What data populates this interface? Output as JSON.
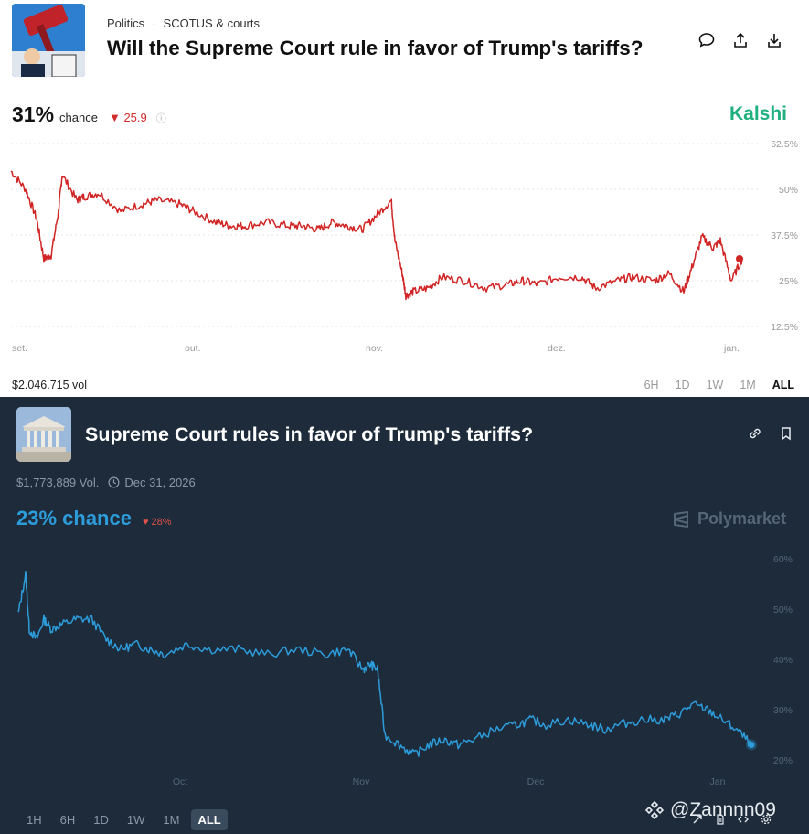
{
  "kalshi": {
    "breadcrumb": {
      "category": "Politics",
      "separator": "·",
      "subcategory": "SCOTUS & courts"
    },
    "title": "Will the Supreme Court rule in favor of Trump's tariffs?",
    "icons": [
      "comment-icon",
      "share-icon",
      "download-icon"
    ],
    "odds": {
      "percent": "31%",
      "label": "chance",
      "delta": "▼ 25.9",
      "info": "ⓘ"
    },
    "brand": "Kalshi",
    "volume": "$2.046.715 vol",
    "ranges": [
      "6H",
      "1D",
      "1W",
      "1M",
      "ALL"
    ],
    "active_range": "ALL",
    "colors": {
      "line": "#d12424",
      "brand": "#1fb07e",
      "delta": "#d32b2b"
    }
  },
  "polymarket": {
    "title": "Supreme Court rules in favor of Trump's tariffs?",
    "icons": [
      "link-icon",
      "bookmark-icon"
    ],
    "volume": "$1,773,889 Vol.",
    "end_date": "Dec 31, 2026",
    "odds": {
      "chance": "23% chance",
      "delta": "♥ 28%"
    },
    "brand": "Polymarket",
    "ranges": [
      "1H",
      "6H",
      "1D",
      "1W",
      "1M",
      "ALL"
    ],
    "active_range": "ALL",
    "watermark": "@Zannnn09",
    "colors": {
      "line": "#2d9cdb",
      "background": "#1d2b3a",
      "delta": "#e0514a"
    }
  },
  "chart_data": [
    {
      "type": "line",
      "source": "Kalshi",
      "x_ticks": [
        "set.",
        "out.",
        "nov.",
        "dez.",
        "jan."
      ],
      "y_ticks": [
        "62.5%",
        "50%",
        "37.5%",
        "25%",
        "12.5%"
      ],
      "ylim": [
        0.125,
        0.625
      ],
      "grid": true,
      "series": [
        {
          "x": [
            0,
            0.02,
            0.035,
            0.045,
            0.055,
            0.065,
            0.07,
            0.09,
            0.1,
            0.12,
            0.15,
            0.18,
            0.2,
            0.23,
            0.25,
            0.28,
            0.3,
            0.32,
            0.35,
            0.38,
            0.4,
            0.42,
            0.44,
            0.46,
            0.48,
            0.5,
            0.52,
            0.525,
            0.535,
            0.54,
            0.55,
            0.57,
            0.59,
            0.62,
            0.65,
            0.68,
            0.7,
            0.72,
            0.75,
            0.78,
            0.8,
            0.83,
            0.85,
            0.88,
            0.9,
            0.92,
            0.93,
            0.945,
            0.96,
            0.97,
            0.985,
            1.0
          ],
          "y": [
            0.55,
            0.5,
            0.42,
            0.31,
            0.32,
            0.44,
            0.54,
            0.47,
            0.48,
            0.49,
            0.44,
            0.46,
            0.47,
            0.46,
            0.44,
            0.41,
            0.4,
            0.4,
            0.41,
            0.4,
            0.4,
            0.39,
            0.41,
            0.4,
            0.39,
            0.43,
            0.47,
            0.36,
            0.27,
            0.21,
            0.22,
            0.23,
            0.26,
            0.25,
            0.23,
            0.24,
            0.25,
            0.24,
            0.26,
            0.26,
            0.23,
            0.25,
            0.26,
            0.25,
            0.27,
            0.22,
            0.28,
            0.37,
            0.34,
            0.36,
            0.25,
            0.31
          ],
          "values_shown_range": "Sep–Jan"
        }
      ]
    },
    {
      "type": "line",
      "source": "Polymarket",
      "x_ticks": [
        "Oct",
        "Nov",
        "Dec",
        "Jan"
      ],
      "y_ticks": [
        "60%",
        "50%",
        "40%",
        "30%",
        "20%"
      ],
      "ylim": [
        0.2,
        0.6
      ],
      "grid": false,
      "series": [
        {
          "x": [
            0,
            0.01,
            0.015,
            0.025,
            0.035,
            0.045,
            0.06,
            0.08,
            0.1,
            0.12,
            0.14,
            0.16,
            0.18,
            0.2,
            0.23,
            0.26,
            0.3,
            0.34,
            0.38,
            0.42,
            0.45,
            0.47,
            0.48,
            0.49,
            0.5,
            0.52,
            0.54,
            0.56,
            0.58,
            0.6,
            0.62,
            0.65,
            0.68,
            0.7,
            0.72,
            0.75,
            0.78,
            0.8,
            0.82,
            0.85,
            0.88,
            0.9,
            0.92,
            0.94,
            0.96,
            0.98,
            1.0
          ],
          "y": [
            0.49,
            0.57,
            0.46,
            0.44,
            0.48,
            0.46,
            0.47,
            0.48,
            0.48,
            0.44,
            0.42,
            0.43,
            0.42,
            0.41,
            0.43,
            0.42,
            0.42,
            0.41,
            0.42,
            0.41,
            0.42,
            0.38,
            0.39,
            0.38,
            0.25,
            0.23,
            0.21,
            0.23,
            0.24,
            0.23,
            0.24,
            0.26,
            0.27,
            0.28,
            0.27,
            0.28,
            0.27,
            0.26,
            0.27,
            0.28,
            0.28,
            0.29,
            0.31,
            0.3,
            0.28,
            0.26,
            0.23
          ]
        }
      ]
    }
  ]
}
